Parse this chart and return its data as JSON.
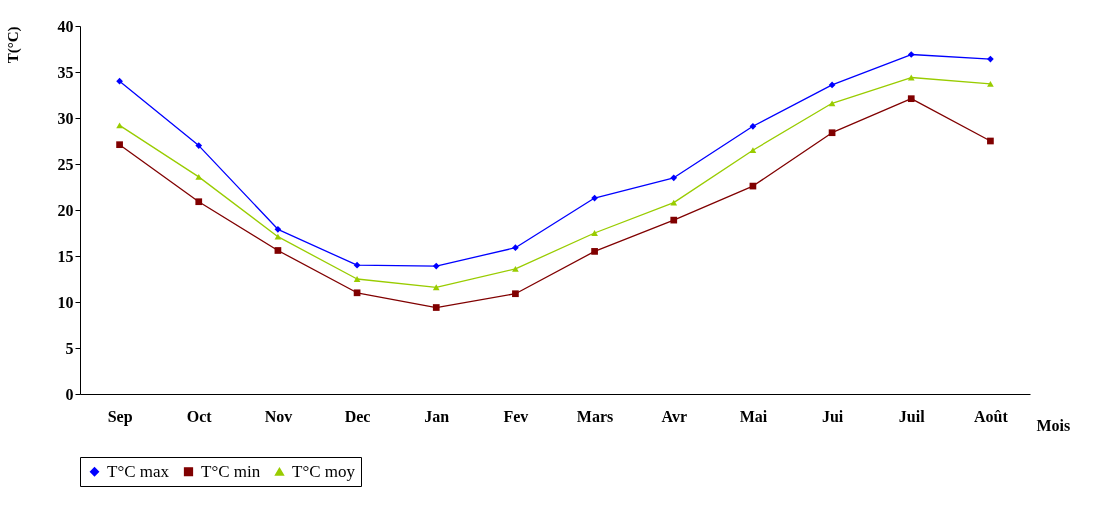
{
  "chart_data": {
    "type": "line",
    "xlabel": "Mois",
    "ylabel": "T(°C)",
    "categories": [
      "Sep",
      "Oct",
      "Nov",
      "Dec",
      "Jan",
      "Fev",
      "Mars",
      "Avr",
      "Mai",
      "Jui",
      "Juil",
      "Août"
    ],
    "series": [
      {
        "name": "T°C max",
        "color": "#0000ff",
        "marker": "diamond",
        "values": [
          34.0,
          27.0,
          17.9,
          14.0,
          13.9,
          15.9,
          21.3,
          23.5,
          29.1,
          33.6,
          36.9,
          36.4
        ]
      },
      {
        "name": "T°C min",
        "color": "#800000",
        "marker": "square",
        "values": [
          27.1,
          20.9,
          15.6,
          11.0,
          9.4,
          10.9,
          15.5,
          18.9,
          22.6,
          28.4,
          32.1,
          27.5
        ]
      },
      {
        "name": "T°C moy",
        "color": "#99cc00",
        "marker": "triangle",
        "values": [
          29.2,
          23.6,
          17.1,
          12.5,
          11.6,
          13.6,
          17.5,
          20.8,
          26.5,
          31.6,
          34.4,
          33.7
        ]
      }
    ],
    "ylim": [
      0,
      40
    ],
    "yticks": [
      0,
      5,
      10,
      15,
      20,
      25,
      30,
      35,
      40
    ],
    "grid": false,
    "legend": "bottom",
    "line_style": "solid"
  }
}
